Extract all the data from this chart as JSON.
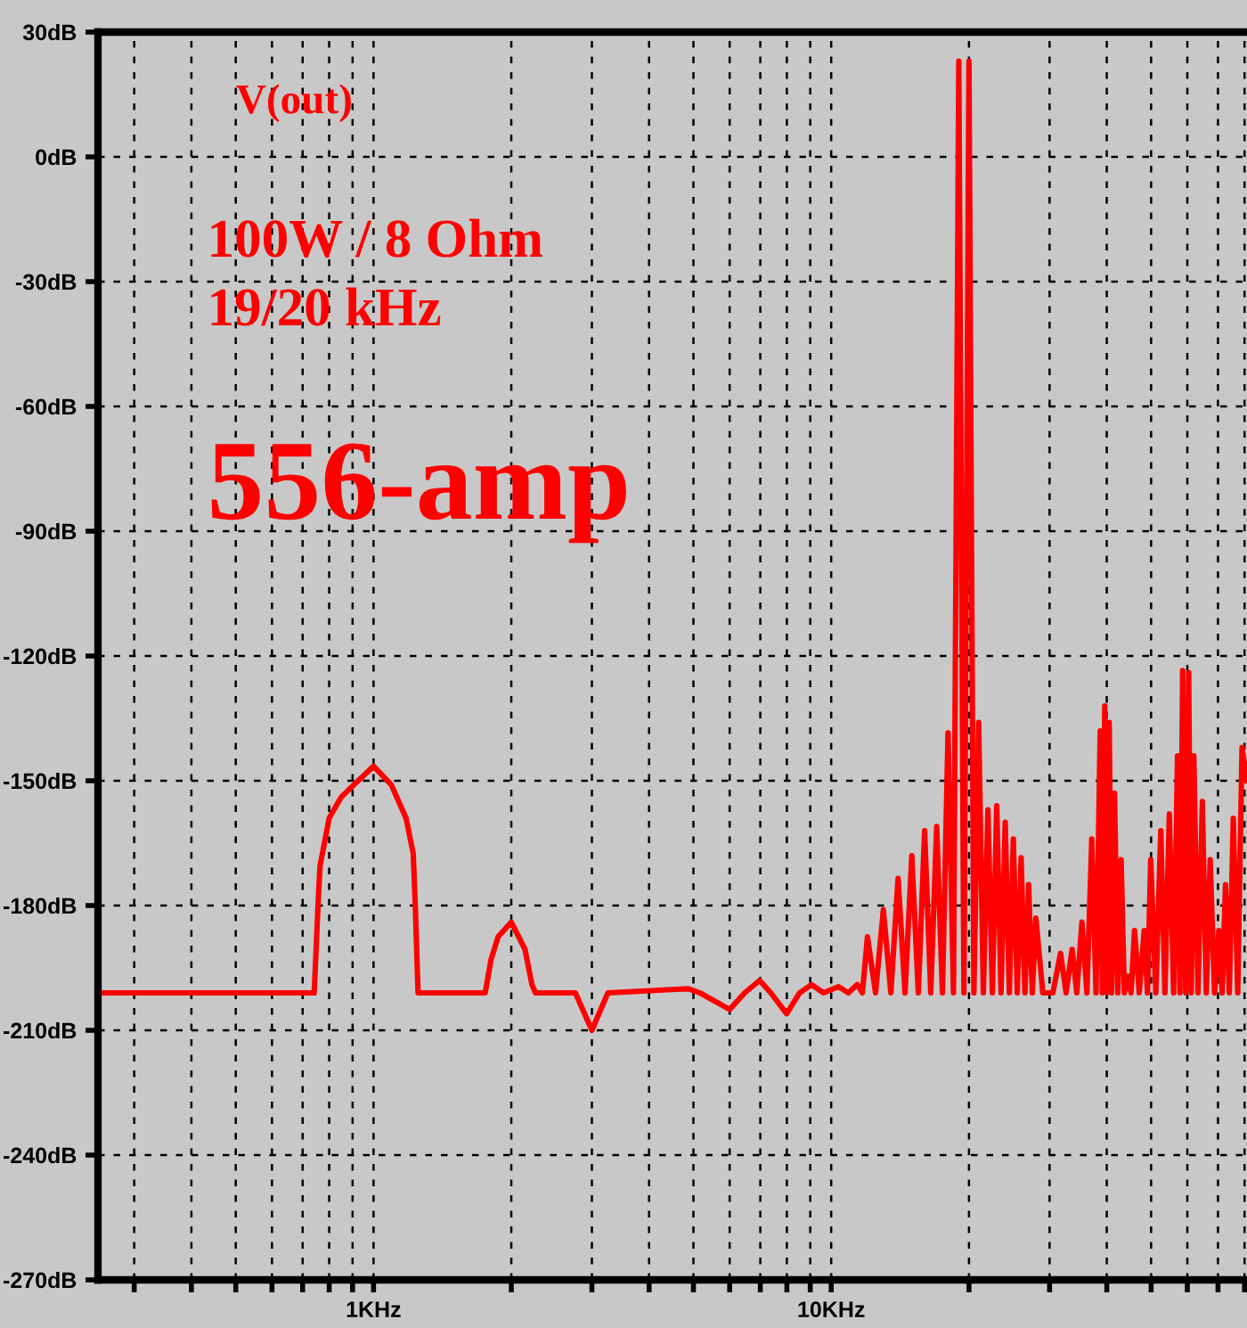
{
  "chart_data": {
    "type": "line",
    "annotations": [
      "V(out)",
      "100W / 8 Ohm",
      "19/20 kHz",
      "556-amp"
    ],
    "series": [
      {
        "color": "#ff0000",
        "x": [
          0.25,
          0.742,
          0.757,
          0.764,
          0.8,
          0.849,
          0.915,
          1.0,
          1.094,
          1.178,
          1.221,
          1.233,
          1.251,
          1.754,
          1.806,
          1.872,
          2.0,
          2.142,
          2.219,
          2.259,
          2.761,
          3.0,
          3.251,
          4.875,
          5.165,
          6.0,
          6.47,
          6.975,
          7.38,
          7.99,
          8.53,
          9.06,
          9.62,
          10.37,
          10.9,
          11.4,
          11.7,
          12,
          12.5,
          13,
          13.5,
          14,
          14.5,
          15,
          15.5,
          16,
          16.5,
          17,
          17.5,
          18,
          18.5,
          19,
          19.5,
          20,
          20.5,
          21,
          21.5,
          22,
          22.5,
          23,
          23.5,
          24,
          24.5,
          25,
          25.5,
          26,
          26.5,
          27,
          27.5,
          28,
          29,
          30.5,
          31.7,
          32.6,
          33.6,
          34.4,
          35.3,
          36.2,
          37.1,
          37.9,
          38.7,
          39.1,
          39.6,
          40.0,
          40.5,
          41.0,
          41.6,
          42.3,
          43.0,
          43.7,
          44.5,
          45.2,
          46.0,
          47.1,
          48.3,
          49.1,
          49.9,
          51.2,
          52.5,
          53.6,
          54.8,
          56.0,
          57.1,
          57.8,
          58.6,
          59.5,
          60.4,
          61.2,
          62.0,
          63.3,
          64.7,
          66.0,
          67.3,
          68.8,
          70.3,
          71.5,
          72.7,
          74.1,
          75.6,
          77.3,
          79.0,
          81
        ],
        "values": [
          -201,
          -201,
          -179,
          -170.5,
          -159,
          -154,
          -150.5,
          -146.5,
          -151,
          -159,
          -167.5,
          -179,
          -201,
          -201,
          -193,
          -187.5,
          -184,
          -190.5,
          -199,
          -201,
          -201,
          -210,
          -201,
          -200,
          -201,
          -205,
          -201,
          -198,
          -201,
          -206,
          -201,
          -199,
          -201,
          -199.5,
          -201,
          -199,
          -201,
          -187.5,
          -201,
          -181,
          -201,
          -173.5,
          -201,
          -168,
          -201,
          -162,
          -201,
          -161,
          -201,
          -138.5,
          -201,
          23,
          -201,
          23,
          -201,
          -136,
          -201,
          -157,
          -201,
          -156,
          -201,
          -160,
          -201,
          -164,
          -201,
          -168.5,
          -201,
          -175,
          -201,
          -183,
          -201,
          -201,
          -191.5,
          -201,
          -190.5,
          -201,
          -184,
          -201,
          -164,
          -201,
          -138,
          -201,
          -132,
          -201,
          -136,
          -201,
          -153,
          -201,
          -169,
          -201,
          -197,
          -201,
          -186,
          -201,
          -186,
          -201,
          -169,
          -201,
          -162,
          -201,
          -158,
          -201,
          -144,
          -201,
          -123.5,
          -201,
          -124,
          -201,
          -144,
          -201,
          -155,
          -201,
          -169,
          -201,
          -186,
          -201,
          -175,
          -201,
          -159,
          -201,
          -142,
          -150
        ]
      }
    ],
    "log": "x",
    "xlim": [
      0.25,
      81
    ],
    "xticks": [
      {
        "value": 0.3,
        "label": null
      },
      {
        "value": 0.4,
        "label": null
      },
      {
        "value": 0.5,
        "label": null
      },
      {
        "value": 0.6,
        "label": null
      },
      {
        "value": 0.7,
        "label": null
      },
      {
        "value": 0.8,
        "label": null
      },
      {
        "value": 0.9,
        "label": null
      },
      {
        "value": 1,
        "label": "1KHz"
      },
      {
        "value": 2,
        "label": null
      },
      {
        "value": 3,
        "label": null
      },
      {
        "value": 4,
        "label": null
      },
      {
        "value": 5,
        "label": null
      },
      {
        "value": 6,
        "label": null
      },
      {
        "value": 7,
        "label": null
      },
      {
        "value": 8,
        "label": null
      },
      {
        "value": 9,
        "label": null
      },
      {
        "value": 10,
        "label": "10KHz"
      },
      {
        "value": 20,
        "label": null
      },
      {
        "value": 30,
        "label": null
      },
      {
        "value": 40,
        "label": null
      },
      {
        "value": 50,
        "label": null
      },
      {
        "value": 60,
        "label": null
      },
      {
        "value": 70,
        "label": null
      },
      {
        "value": 80,
        "label": null
      }
    ],
    "ylim": [
      -270,
      30
    ],
    "yticks": [
      {
        "value": 30,
        "label": "30dB"
      },
      {
        "value": 0,
        "label": "0dB"
      },
      {
        "value": -30,
        "label": "-30dB"
      },
      {
        "value": -60,
        "label": "-60dB"
      },
      {
        "value": -90,
        "label": "-90dB"
      },
      {
        "value": -120,
        "label": "-120dB"
      },
      {
        "value": -150,
        "label": "-150dB"
      },
      {
        "value": -180,
        "label": "-180dB"
      },
      {
        "value": -210,
        "label": "-210dB"
      },
      {
        "value": -240,
        "label": "-240dB"
      },
      {
        "value": -270,
        "label": "-270dB"
      }
    ],
    "grid": true,
    "line_style": "solid",
    "marker": "none"
  }
}
